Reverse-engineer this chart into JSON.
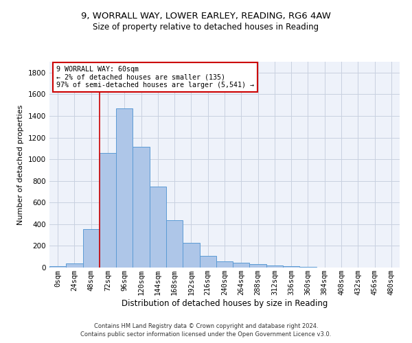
{
  "title1": "9, WORRALL WAY, LOWER EARLEY, READING, RG6 4AW",
  "title2": "Size of property relative to detached houses in Reading",
  "xlabel": "Distribution of detached houses by size in Reading",
  "ylabel": "Number of detached properties",
  "categories": [
    "0sqm",
    "24sqm",
    "48sqm",
    "72sqm",
    "96sqm",
    "120sqm",
    "144sqm",
    "168sqm",
    "192sqm",
    "216sqm",
    "240sqm",
    "264sqm",
    "288sqm",
    "312sqm",
    "336sqm",
    "360sqm",
    "384sqm",
    "408sqm",
    "432sqm",
    "456sqm",
    "480sqm"
  ],
  "values": [
    10,
    35,
    355,
    1060,
    1470,
    1115,
    750,
    438,
    225,
    110,
    55,
    47,
    30,
    22,
    10,
    5,
    3,
    2,
    1,
    1,
    1
  ],
  "bar_color": "#aec6e8",
  "bar_edge_color": "#5b9bd5",
  "vline_color": "#cc0000",
  "vline_x_index": 2.5,
  "annotation_text": "9 WORRALL WAY: 60sqm\n← 2% of detached houses are smaller (135)\n97% of semi-detached houses are larger (5,541) →",
  "annotation_box_color": "#ffffff",
  "annotation_box_edge": "#cc0000",
  "bg_color": "#eef2fa",
  "grid_color": "#c8d0e0",
  "footer": "Contains HM Land Registry data © Crown copyright and database right 2024.\nContains public sector information licensed under the Open Government Licence v3.0.",
  "ylim": [
    0,
    1900
  ],
  "yticks": [
    0,
    200,
    400,
    600,
    800,
    1000,
    1200,
    1400,
    1600,
    1800
  ],
  "title1_fontsize": 9.5,
  "title2_fontsize": 8.5,
  "xlabel_fontsize": 8.5,
  "ylabel_fontsize": 8,
  "tick_fontsize": 7.5,
  "footer_fontsize": 6
}
